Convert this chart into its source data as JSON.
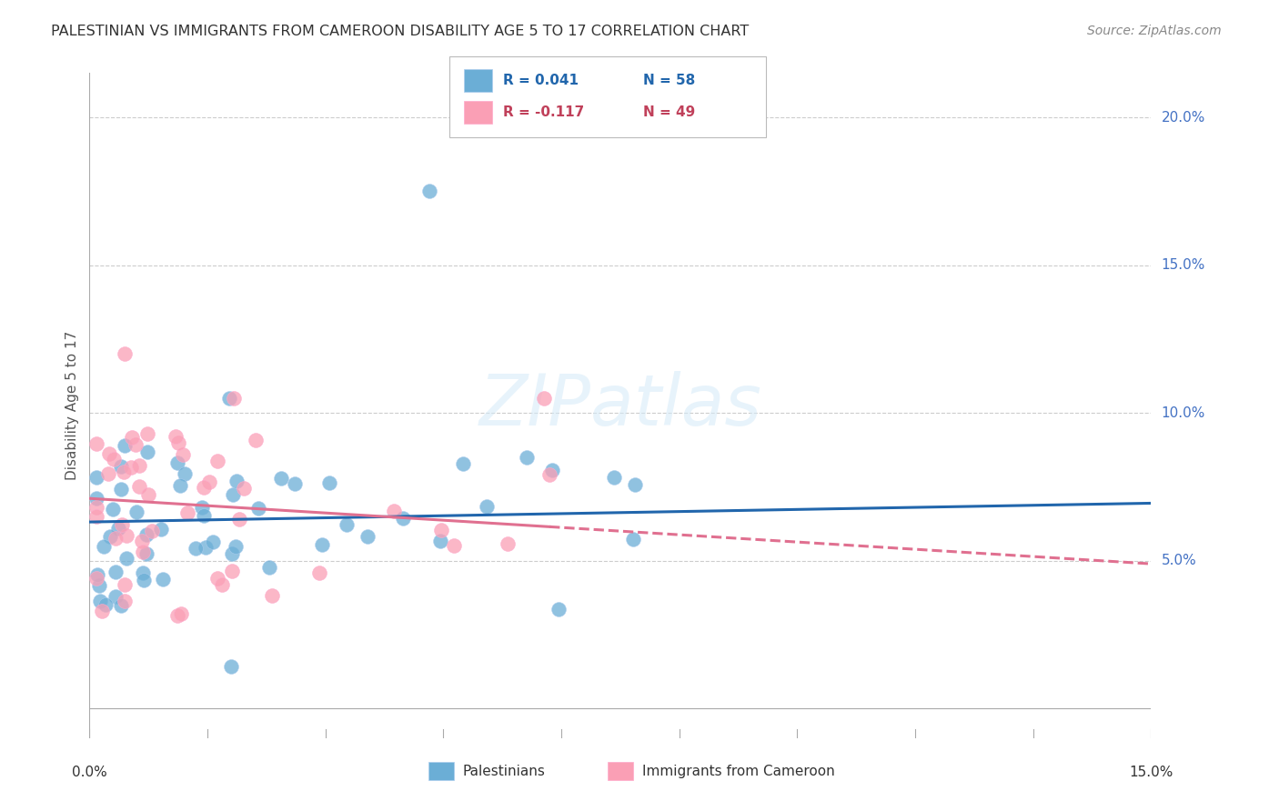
{
  "title": "PALESTINIAN VS IMMIGRANTS FROM CAMEROON DISABILITY AGE 5 TO 17 CORRELATION CHART",
  "source": "Source: ZipAtlas.com",
  "ylabel": "Disability Age 5 to 17",
  "y_ticks": [
    0.05,
    0.1,
    0.15,
    0.2
  ],
  "y_tick_labels": [
    "5.0%",
    "10.0%",
    "15.0%",
    "20.0%"
  ],
  "xlim": [
    0.0,
    0.15
  ],
  "ylim": [
    -0.01,
    0.215
  ],
  "blue_color": "#6baed6",
  "pink_color": "#fa9fb5",
  "blue_line_color": "#2166ac",
  "pink_line_color": "#e07090",
  "watermark": "ZIPatlas",
  "legend_blue_r": "R = 0.041",
  "legend_blue_n": "N = 58",
  "legend_pink_r": "R = -0.117",
  "legend_pink_n": "N = 49",
  "blue_r_color": "#2166ac",
  "pink_r_color": "#c0405a"
}
